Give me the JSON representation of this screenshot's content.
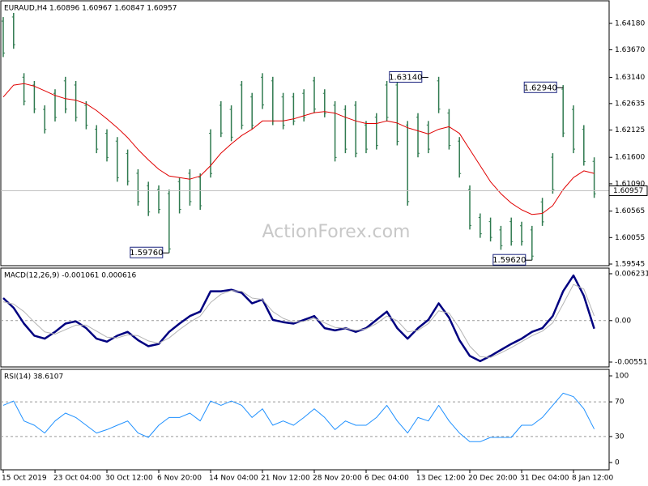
{
  "chart_data": [
    {
      "type": "ohlc",
      "title": "EURAUD,H4  1.60896 1.60967 1.60847 1.60957",
      "watermark": "ActionForex.com",
      "color": "#2f7a4f",
      "high": [
        1.643,
        1.6438,
        1.6322,
        1.6307,
        1.626,
        1.6291,
        1.6315,
        1.6307,
        1.6268,
        1.6222,
        1.6214,
        1.6199,
        1.6175,
        1.6137,
        1.6113,
        1.6106,
        1.6098,
        1.6121,
        1.6137,
        1.6129,
        1.6214,
        1.6268,
        1.626,
        1.6307,
        1.6284,
        1.6322,
        1.6315,
        1.6284,
        1.6284,
        1.6291,
        1.6315,
        1.6291,
        1.6268,
        1.626,
        1.6268,
        1.623,
        1.6245,
        1.6307,
        1.6307,
        1.623,
        1.6245,
        1.623,
        1.6315,
        1.6253,
        1.6199,
        1.6106,
        1.6052,
        1.6044,
        1.6028,
        1.6044,
        1.6036,
        1.6028,
        1.6082,
        1.6168,
        1.6299,
        1.626,
        1.6222,
        1.616
      ],
      "low": [
        1.6353,
        1.6369,
        1.626,
        1.6245,
        1.6206,
        1.6229,
        1.6245,
        1.6229,
        1.6214,
        1.6168,
        1.6152,
        1.6113,
        1.6106,
        1.6067,
        1.6047,
        1.6052,
        1.5976,
        1.6052,
        1.6067,
        1.6059,
        1.6121,
        1.6199,
        1.6191,
        1.6214,
        1.6214,
        1.6253,
        1.6222,
        1.6214,
        1.6222,
        1.6229,
        1.6245,
        1.6237,
        1.6152,
        1.6168,
        1.616,
        1.6168,
        1.6175,
        1.6229,
        1.6183,
        1.6067,
        1.616,
        1.6168,
        1.6245,
        1.6175,
        1.6121,
        1.6021,
        1.6005,
        1.5998,
        1.5982,
        1.599,
        1.599,
        1.5962,
        1.6028,
        1.609,
        1.6199,
        1.6168,
        1.6144,
        1.6082
      ],
      "ma": {
        "color": "#e00000",
        "values": [
          1.6276,
          1.6299,
          1.6302,
          1.6297,
          1.6288,
          1.6279,
          1.6273,
          1.627,
          1.6263,
          1.625,
          1.6234,
          1.6217,
          1.6198,
          1.6175,
          1.6155,
          1.6137,
          1.6124,
          1.6121,
          1.6118,
          1.6124,
          1.6144,
          1.6168,
          1.6186,
          1.6202,
          1.6214,
          1.623,
          1.623,
          1.623,
          1.6234,
          1.624,
          1.6246,
          1.6248,
          1.6245,
          1.6237,
          1.623,
          1.6225,
          1.6225,
          1.623,
          1.6226,
          1.6217,
          1.6211,
          1.6205,
          1.6214,
          1.6219,
          1.6206,
          1.6175,
          1.6144,
          1.6113,
          1.609,
          1.6072,
          1.6059,
          1.605,
          1.6052,
          1.6067,
          1.6098,
          1.6121,
          1.6134,
          1.6129
        ]
      },
      "current": 1.60957,
      "annotations": [
        {
          "bar": 16,
          "value": 1.5976,
          "label": "1.59760"
        },
        {
          "bar": 41,
          "value": 1.6314,
          "label": "1.63140"
        },
        {
          "bar": 51,
          "value": 1.5962,
          "label": "1.59620"
        },
        {
          "bar": 54,
          "value": 1.6294,
          "label": "1.62940"
        }
      ],
      "ylim": [
        1.59514,
        1.64613
      ],
      "yticks": [
        {
          "value": 1.6418,
          "label": "1.64180"
        },
        {
          "value": 1.6367,
          "label": "1.63670"
        },
        {
          "value": 1.6314,
          "label": "1.63140"
        },
        1.62635,
        1.62125,
        {
          "value": 1.616,
          "label": "1.61600"
        },
        {
          "value": 1.6109,
          "label": "1.61090"
        },
        1.60565,
        1.60055,
        1.59545
      ]
    },
    {
      "type": "line",
      "title": "MACD(12,26,9) -0.001061 0.000616",
      "series": [
        {
          "color": "#000080",
          "width": 2.5,
          "values": [
            0.003,
            0.0017,
            -0.0004,
            -0.002,
            -0.0024,
            -0.0015,
            -0.0004,
            -0.0001,
            -0.001,
            -0.0024,
            -0.0028,
            -0.002,
            -0.0015,
            -0.0026,
            -0.0034,
            -0.0031,
            -0.0015,
            -0.0004,
            0.0006,
            0.0012,
            0.0039,
            0.0039,
            0.0041,
            0.0037,
            0.0023,
            0.0028,
            0.0001,
            -0.0002,
            -0.0004,
            0.0001,
            0.0006,
            -0.001,
            -0.0013,
            -0.001,
            -0.0015,
            -0.001,
            0.0001,
            0.0012,
            -0.001,
            -0.0024,
            -0.001,
            0.0001,
            0.0023,
            0.0004,
            -0.0026,
            -0.0047,
            -0.0054,
            -0.0047,
            -0.0039,
            -0.0031,
            -0.0024,
            -0.0015,
            -0.001,
            0.0006,
            0.0039,
            0.006,
            0.0033,
            -0.001061
          ]
        },
        {
          "color": "#b4b4b4",
          "width": 1,
          "values": [
            0.0025,
            0.0022,
            0.0012,
            -0.0002,
            -0.0015,
            -0.0018,
            -0.0012,
            -0.0006,
            -0.0006,
            -0.0014,
            -0.0022,
            -0.0023,
            -0.0019,
            -0.002,
            -0.0027,
            -0.003,
            -0.0023,
            -0.0012,
            -0.0002,
            0.0006,
            0.0024,
            0.0035,
            0.004,
            0.0039,
            0.003,
            0.0028,
            0.0012,
            0.0003,
            -0.0002,
            -0.0001,
            0.0003,
            -0.0003,
            -0.0009,
            -0.001,
            -0.0013,
            -0.0011,
            -0.0004,
            0.0006,
            0.0,
            -0.0015,
            -0.0013,
            -0.0004,
            0.0013,
            0.001,
            -0.001,
            -0.0034,
            -0.0048,
            -0.0049,
            -0.0043,
            -0.0036,
            -0.0028,
            -0.002,
            -0.0014,
            -0.0003,
            0.0022,
            0.0048,
            0.0042,
            0.000616
          ]
        }
      ],
      "ylim": [
        -0.00616,
        0.00698
      ],
      "yticks": [
        0.006231,
        {
          "value": 0,
          "label": "0.00"
        },
        -0.005513
      ],
      "levels": [
        0
      ]
    },
    {
      "type": "line",
      "title": "RSI(14) 38.6107",
      "series": [
        {
          "color": "#1e90ff",
          "width": 1,
          "values": [
            66,
            71,
            48,
            43,
            34,
            48,
            57,
            52,
            43,
            34,
            38,
            43,
            48,
            34,
            29,
            43,
            52,
            52,
            57,
            48,
            71,
            66,
            71,
            66,
            52,
            62,
            43,
            48,
            43,
            52,
            62,
            52,
            38,
            48,
            43,
            43,
            52,
            66,
            48,
            34,
            52,
            48,
            66,
            48,
            34,
            24,
            24,
            29,
            29,
            29,
            43,
            43,
            52,
            66,
            80,
            76,
            62,
            38.6107
          ]
        }
      ],
      "ylim": [
        -8.4,
        107.5
      ],
      "yticks": [
        100,
        70,
        30,
        0
      ],
      "levels": [
        70,
        30
      ],
      "x": [
        "15 Oct 2019",
        null,
        null,
        null,
        null,
        "23 Oct 04:00",
        null,
        null,
        null,
        null,
        "30 Oct 12:00",
        null,
        null,
        null,
        null,
        "6 Nov 20:00",
        null,
        null,
        null,
        null,
        "14 Nov 04:00",
        null,
        null,
        null,
        null,
        "21 Nov 12:00",
        null,
        null,
        null,
        null,
        "28 Nov 20:00",
        null,
        null,
        null,
        null,
        "6 Dec 04:00",
        null,
        null,
        null,
        null,
        "13 Dec 12:00",
        null,
        null,
        null,
        null,
        "20 Dec 20:00",
        null,
        null,
        null,
        null,
        "31 Dec 04:00",
        null,
        null,
        null,
        null,
        "8 Jan 12:00",
        null,
        null
      ]
    }
  ]
}
